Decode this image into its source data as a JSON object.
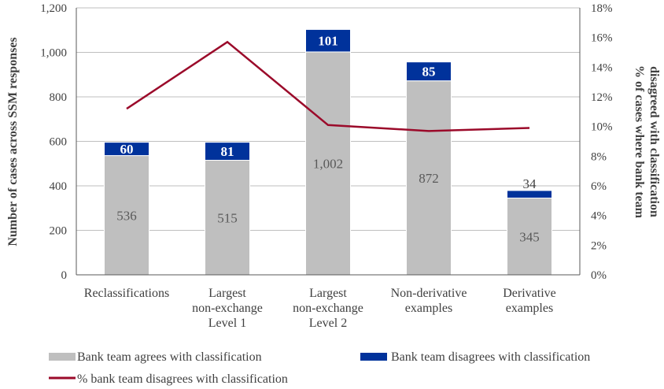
{
  "chart_data": {
    "type": "bar",
    "stacked": true,
    "categories": [
      [
        "Reclassifications"
      ],
      [
        "Largest",
        "non-exchange",
        "Level 1"
      ],
      [
        "Largest",
        "non-exchange",
        "Level 2"
      ],
      [
        "Non-derivative",
        "examples"
      ],
      [
        "Derivative",
        "examples"
      ]
    ],
    "series": [
      {
        "name": "Bank team agrees with classification",
        "values": [
          536,
          515,
          1002,
          872,
          345
        ],
        "labels": [
          "536",
          "515",
          "1,002",
          "872",
          "345"
        ],
        "color": "#BFBFBF",
        "axis": "left"
      },
      {
        "name": "Bank team disagrees with classification",
        "values": [
          60,
          81,
          101,
          85,
          34
        ],
        "labels": [
          "60",
          "81",
          "101",
          "85",
          "34"
        ],
        "color": "#00329B",
        "axis": "left"
      },
      {
        "name": "% bank team disagrees with classification",
        "type": "line",
        "values": [
          11.2,
          15.7,
          10.1,
          9.7,
          9.9
        ],
        "color": "#9B0A2A",
        "axis": "right"
      }
    ],
    "ylabel": "Number of cases across SSM responses",
    "y2label": [
      "% of cases where bank team",
      "disagreed with classification"
    ],
    "ylim": [
      0,
      1200
    ],
    "y2lim": [
      0,
      18
    ],
    "yticks": [
      "0",
      "200",
      "400",
      "600",
      "800",
      "1,000",
      "1,200"
    ],
    "y2ticks": [
      "0%",
      "2%",
      "4%",
      "6%",
      "8%",
      "10%",
      "12%",
      "14%",
      "16%",
      "18%"
    ],
    "grid": true,
    "legend": "bottom"
  }
}
